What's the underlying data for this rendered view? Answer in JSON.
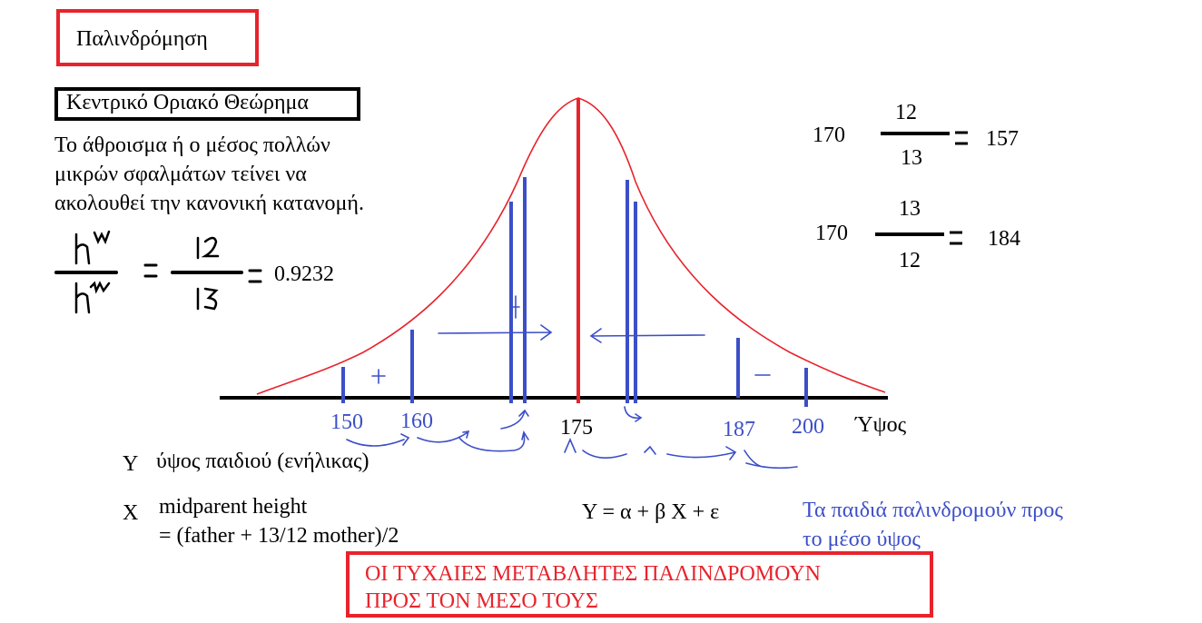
{
  "title": "Παλινδρόμηση",
  "theorem": {
    "heading": "Κεντρικό Οριακό Θεώρημα",
    "line1": "Το άθροισμα ή ο μέσος πολλών",
    "line2": "μικρών σφαλμάτων τείνει να",
    "line3": "ακολουθεί την κανονική κατανομή."
  },
  "ratio_result": "0.9232",
  "ratio_hand": {
    "num_left": "h^w",
    "den_left": "h^m",
    "num_right": "12",
    "den_right": "13"
  },
  "calc1": {
    "left": "170",
    "num": "12",
    "den": "13",
    "result": "157"
  },
  "calc2": {
    "left": "170",
    "num": "13",
    "den": "12",
    "result": "184"
  },
  "axis": {
    "label": "Ύψος",
    "ticks": [
      "150",
      "160",
      "175",
      "187",
      "200"
    ]
  },
  "signs": {
    "plus_left": "+",
    "plus_center": "+",
    "minus_right": "−"
  },
  "variables": {
    "y_symbol": "Y",
    "y_desc": "ύψος παιδιού  (ενήλικας)",
    "x_symbol": "X",
    "x_desc1": "midparent height",
    "x_desc2": "= (father + 13/12 mother)/2"
  },
  "model": "Y = α + β X + ε",
  "regress_note": {
    "line1": "Τα παιδιά παλινδρομούν προς",
    "line2": "το μέσο ύψος"
  },
  "conclusion": {
    "line1": "ΟΙ ΤΥΧΑΙΕΣ ΜΕΤΑΒΛΗΤΕΣ ΠΑΛΙΝΔΡΟΜΟΥΝ",
    "line2": "ΠΡΟΣ ΤΟΝ ΜΕΣΟ ΤΟΥΣ"
  },
  "colors": {
    "red": "#e8232c",
    "blue": "#3c4fc8",
    "black": "#000000"
  }
}
